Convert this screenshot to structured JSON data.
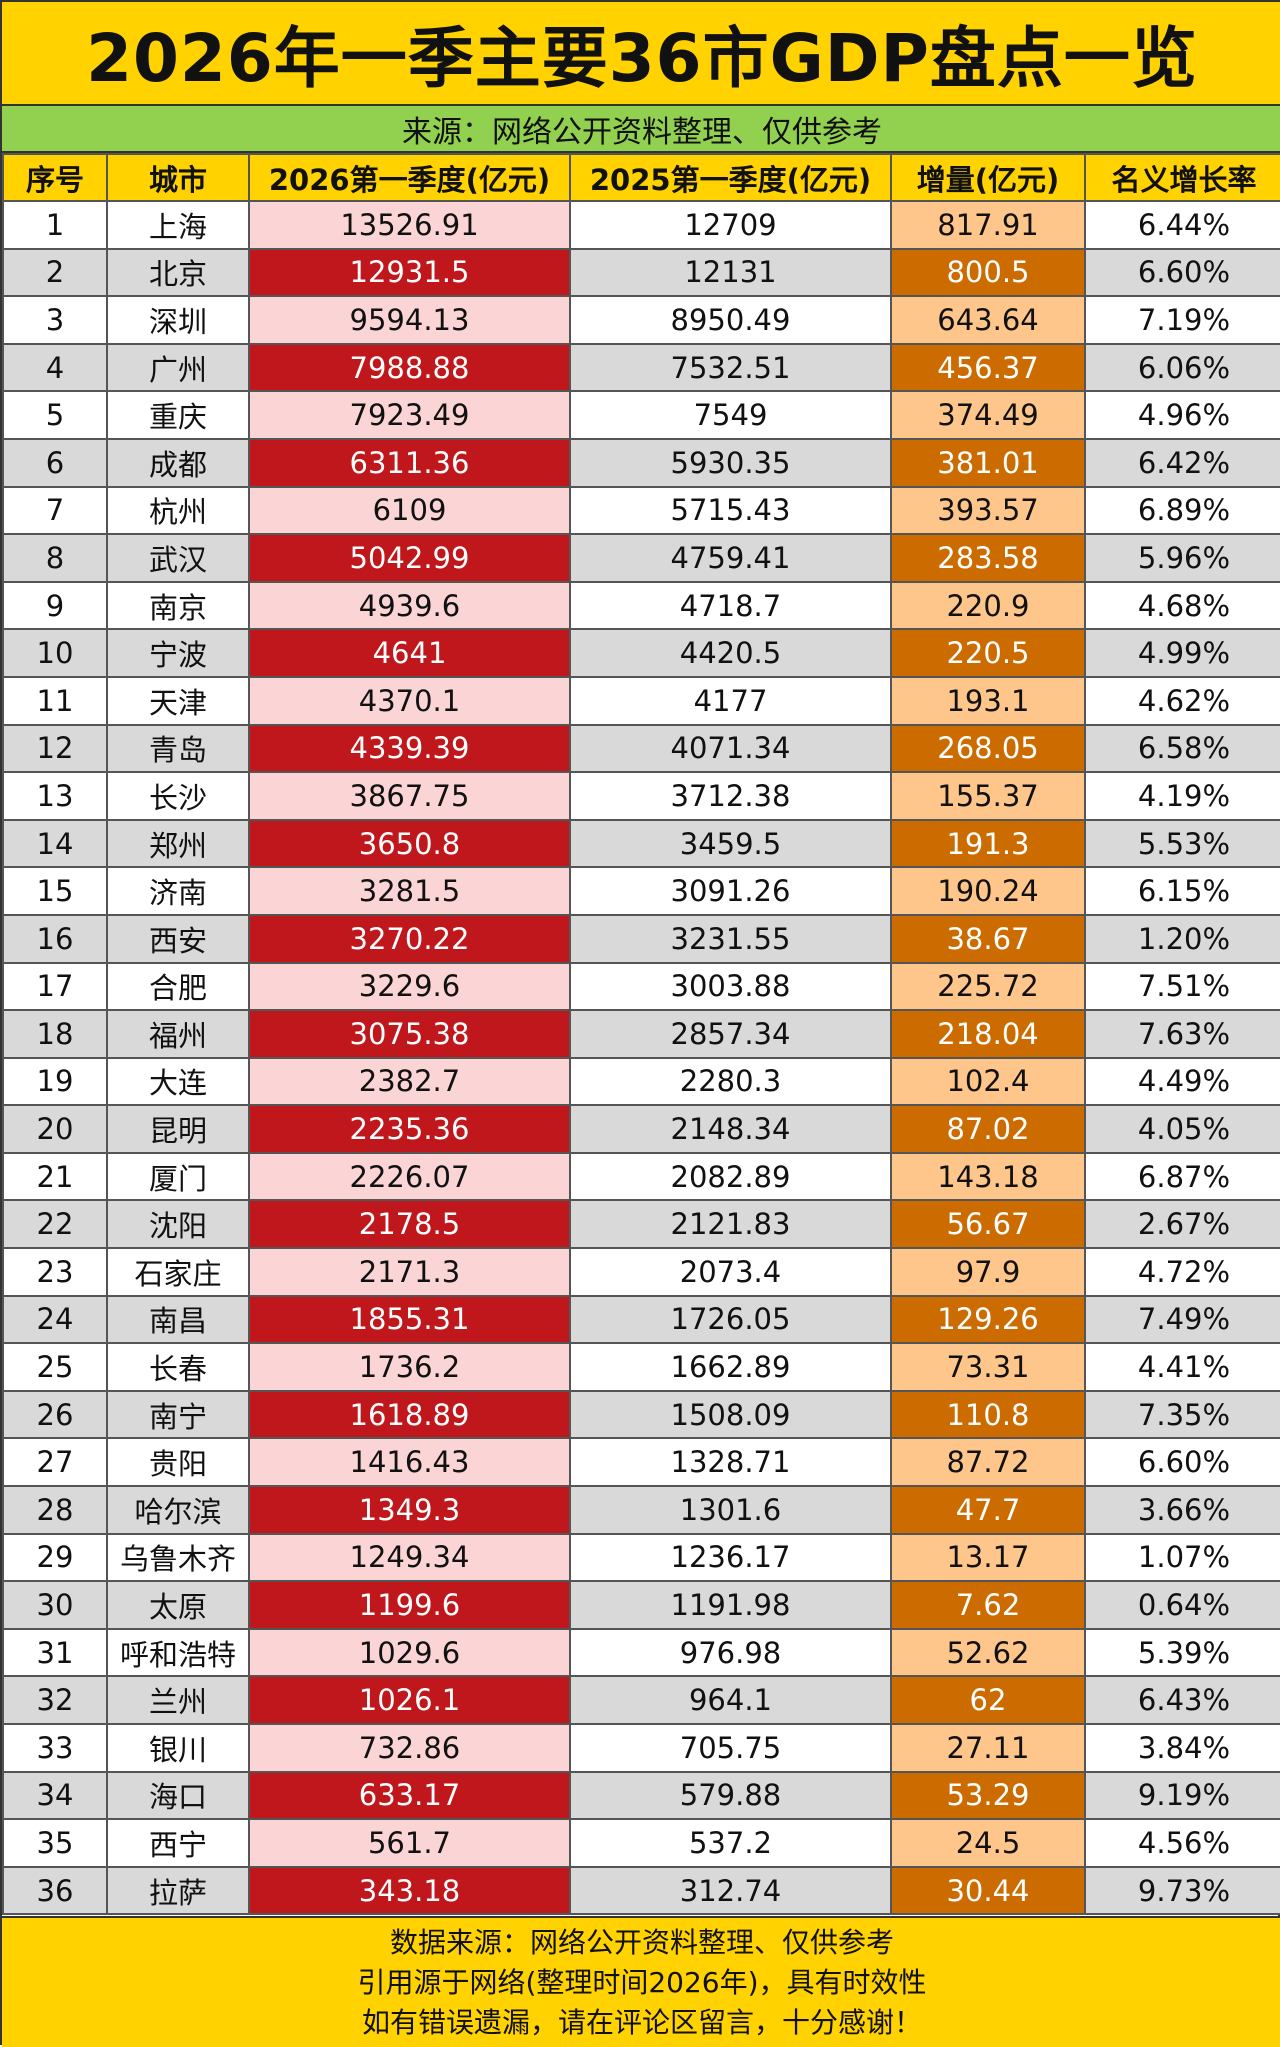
{
  "title": "2026年一季主要36市GDP盘点一览",
  "source_note": "来源：网络公开资料整理、仅供参考",
  "columns": [
    "序号",
    "城市",
    "2026第一季度(亿元)",
    "2025第一季度(亿元)",
    "增量(亿元)",
    "名义增长率"
  ],
  "rows": [
    [
      "1",
      "上海",
      "13526.91",
      "12709",
      "817.91",
      "6.44%"
    ],
    [
      "2",
      "北京",
      "12931.5",
      "12131",
      "800.5",
      "6.60%"
    ],
    [
      "3",
      "深圳",
      "9594.13",
      "8950.49",
      "643.64",
      "7.19%"
    ],
    [
      "4",
      "广州",
      "7988.88",
      "7532.51",
      "456.37",
      "6.06%"
    ],
    [
      "5",
      "重庆",
      "7923.49",
      "7549",
      "374.49",
      "4.96%"
    ],
    [
      "6",
      "成都",
      "6311.36",
      "5930.35",
      "381.01",
      "6.42%"
    ],
    [
      "7",
      "杭州",
      "6109",
      "5715.43",
      "393.57",
      "6.89%"
    ],
    [
      "8",
      "武汉",
      "5042.99",
      "4759.41",
      "283.58",
      "5.96%"
    ],
    [
      "9",
      "南京",
      "4939.6",
      "4718.7",
      "220.9",
      "4.68%"
    ],
    [
      "10",
      "宁波",
      "4641",
      "4420.5",
      "220.5",
      "4.99%"
    ],
    [
      "11",
      "天津",
      "4370.1",
      "4177",
      "193.1",
      "4.62%"
    ],
    [
      "12",
      "青岛",
      "4339.39",
      "4071.34",
      "268.05",
      "6.58%"
    ],
    [
      "13",
      "长沙",
      "3867.75",
      "3712.38",
      "155.37",
      "4.19%"
    ],
    [
      "14",
      "郑州",
      "3650.8",
      "3459.5",
      "191.3",
      "5.53%"
    ],
    [
      "15",
      "济南",
      "3281.5",
      "3091.26",
      "190.24",
      "6.15%"
    ],
    [
      "16",
      "西安",
      "3270.22",
      "3231.55",
      "38.67",
      "1.20%"
    ],
    [
      "17",
      "合肥",
      "3229.6",
      "3003.88",
      "225.72",
      "7.51%"
    ],
    [
      "18",
      "福州",
      "3075.38",
      "2857.34",
      "218.04",
      "7.63%"
    ],
    [
      "19",
      "大连",
      "2382.7",
      "2280.3",
      "102.4",
      "4.49%"
    ],
    [
      "20",
      "昆明",
      "2235.36",
      "2148.34",
      "87.02",
      "4.05%"
    ],
    [
      "21",
      "厦门",
      "2226.07",
      "2082.89",
      "143.18",
      "6.87%"
    ],
    [
      "22",
      "沈阳",
      "2178.5",
      "2121.83",
      "56.67",
      "2.67%"
    ],
    [
      "23",
      "石家庄",
      "2171.3",
      "2073.4",
      "97.9",
      "4.72%"
    ],
    [
      "24",
      "南昌",
      "1855.31",
      "1726.05",
      "129.26",
      "7.49%"
    ],
    [
      "25",
      "长春",
      "1736.2",
      "1662.89",
      "73.31",
      "4.41%"
    ],
    [
      "26",
      "南宁",
      "1618.89",
      "1508.09",
      "110.8",
      "7.35%"
    ],
    [
      "27",
      "贵阳",
      "1416.43",
      "1328.71",
      "87.72",
      "6.60%"
    ],
    [
      "28",
      "哈尔滨",
      "1349.3",
      "1301.6",
      "47.7",
      "3.66%"
    ],
    [
      "29",
      "乌鲁木齐",
      "1249.34",
      "1236.17",
      "13.17",
      "1.07%"
    ],
    [
      "30",
      "太原",
      "1199.6",
      "1191.98",
      "7.62",
      "0.64%"
    ],
    [
      "31",
      "呼和浩特",
      "1029.6",
      "976.98",
      "52.62",
      "5.39%"
    ],
    [
      "32",
      "兰州",
      "1026.1",
      "964.1",
      "62",
      "6.43%"
    ],
    [
      "33",
      "银川",
      "732.86",
      "705.75",
      "27.11",
      "3.84%"
    ],
    [
      "34",
      "海口",
      "633.17",
      "579.88",
      "53.29",
      "9.19%"
    ],
    [
      "35",
      "西宁",
      "561.7",
      "537.2",
      "24.5",
      "4.56%"
    ],
    [
      "36",
      "拉萨",
      "343.18",
      "312.74",
      "30.44",
      "9.73%"
    ]
  ],
  "footer": [
    "数据来源：网络公开资料整理、仅供参考",
    "引用源于网络(整理时间2026年)，具有时效性",
    "如有错误遗漏，请在评论区留言，十分感谢！"
  ],
  "colors": {
    "title_bg": "#ffd200",
    "source_bg": "#92d050",
    "header_bg": "#ffd200",
    "row_alt_bg": "#d9d9d9",
    "gdp2026_light": "#fbd5d5",
    "gdp2026_dark": "#c0171d",
    "increase_light": "#fec68a",
    "increase_dark": "#cc6b00"
  }
}
